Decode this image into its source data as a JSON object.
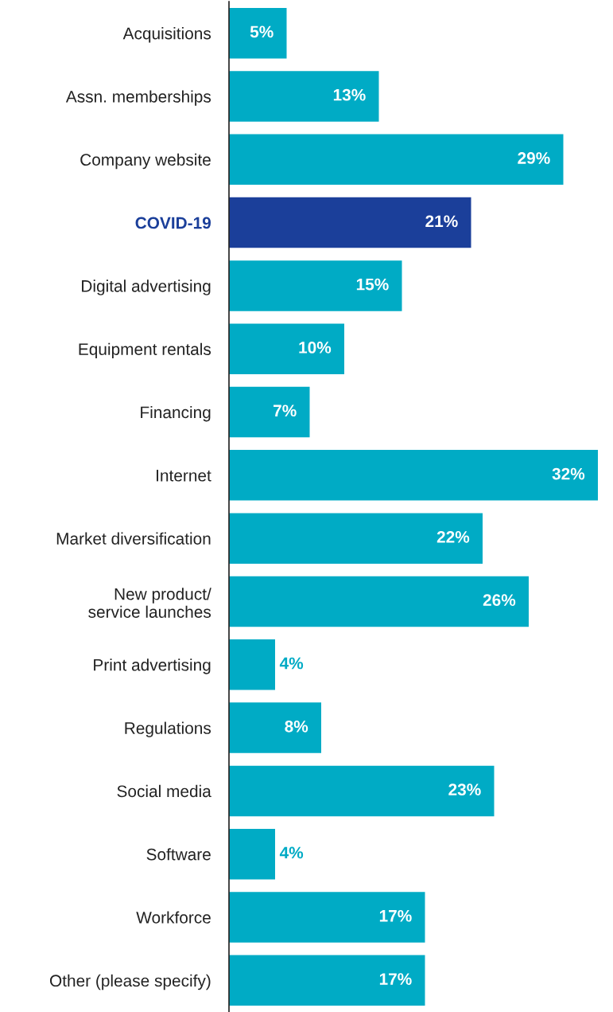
{
  "chart_data": {
    "type": "bar",
    "orientation": "horizontal",
    "categories": [
      "Acquisitions",
      "Assn. memberships",
      "Company website",
      "COVID-19",
      "Digital advertising",
      "Equipment rentals",
      "Financing",
      "Internet",
      "Market diversification",
      "New product/\nservice launches",
      "Print advertising",
      "Regulations",
      "Social media",
      "Software",
      "Workforce",
      "Other (please specify)"
    ],
    "series": [
      {
        "color": "#00abc5",
        "values": [
          5,
          13,
          29,
          21,
          15,
          10,
          7,
          32,
          22,
          26,
          4,
          8,
          23,
          4,
          17,
          17
        ],
        "value_labels": [
          "5%",
          "13%",
          "29%",
          "21%",
          "15%",
          "10%",
          "7%",
          "32%",
          "22%",
          "26%",
          "4%",
          "8%",
          "23%",
          "4%",
          "17%",
          "17%"
        ],
        "colors": [
          "#00abc5",
          "#00abc5",
          "#00abc5",
          "#1b3f9a",
          "#00abc5",
          "#00abc5",
          "#00abc5",
          "#00abc5",
          "#00abc5",
          "#00abc5",
          "#00abc5",
          "#00abc5",
          "#00abc5",
          "#00abc5",
          "#00abc5",
          "#00abc5"
        ]
      }
    ]
  }
}
